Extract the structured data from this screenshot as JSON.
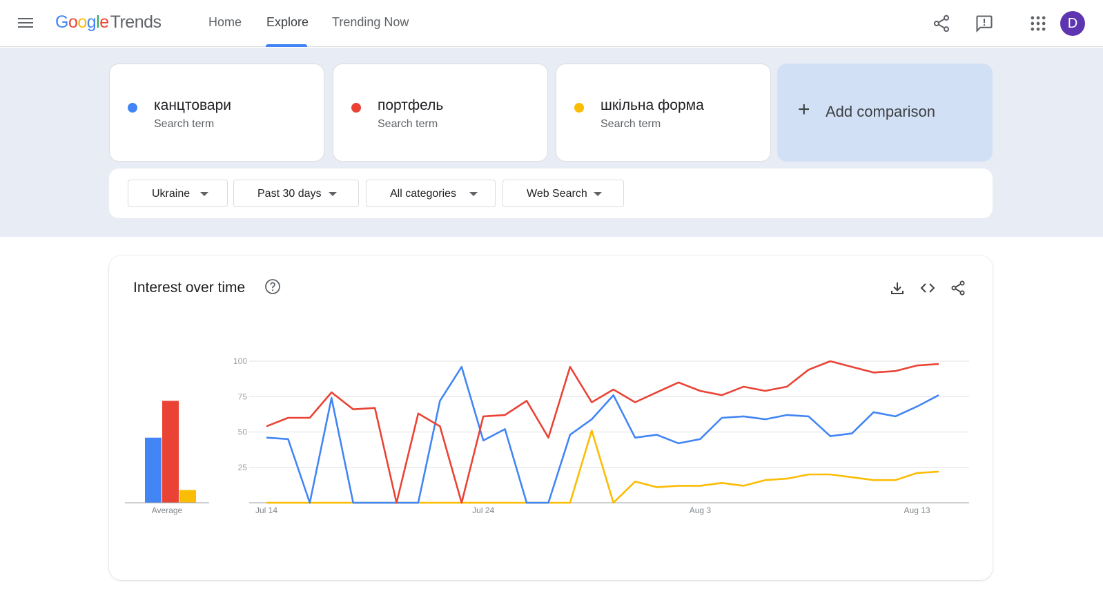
{
  "header": {
    "logo_parts": [
      "G",
      "o",
      "o",
      "g",
      "l",
      "e"
    ],
    "logo_suffix": "Trends",
    "nav": [
      {
        "label": "Home"
      },
      {
        "label": "Explore"
      },
      {
        "label": "Trending Now"
      }
    ],
    "active_nav": "Explore",
    "avatar_letter": "D",
    "icons": [
      "menu-icon",
      "share-icon",
      "feedback-icon",
      "apps-grid-icon"
    ]
  },
  "terms": [
    {
      "name": "канцтовари",
      "type": "Search term",
      "color": "#4285f4"
    },
    {
      "name": "портфель",
      "type": "Search term",
      "color": "#ea4335"
    },
    {
      "name": "шкільна форма",
      "type": "Search term",
      "color": "#fbbc04"
    }
  ],
  "add_comparison": {
    "label": "Add comparison",
    "icon": "plus-icon"
  },
  "filters": [
    {
      "label": "Ukraine"
    },
    {
      "label": "Past 30 days"
    },
    {
      "label": "All categories"
    },
    {
      "label": "Web Search"
    }
  ],
  "interest_over_time": {
    "title": "Interest over time",
    "icons": [
      "help-icon",
      "download-icon",
      "embed-code-icon",
      "share-icon"
    ]
  },
  "chart_data": {
    "type": "line",
    "title": "Interest over time",
    "ylim": [
      0,
      100
    ],
    "yticks": [
      25,
      50,
      75,
      100
    ],
    "x_tick_labels": [
      "Jul 14",
      "Jul 24",
      "Aug 3",
      "Aug 13"
    ],
    "x_start": "Jul 14",
    "x_end": "Aug 14",
    "grid": true,
    "series": [
      {
        "name": "канцтовари",
        "color": "#4285f4",
        "values": [
          46,
          45,
          0,
          74,
          0,
          0,
          0,
          0,
          72,
          96,
          44,
          52,
          0,
          0,
          48,
          59,
          76,
          46,
          48,
          42,
          45,
          60,
          61,
          59,
          62,
          61,
          47,
          49,
          64,
          61,
          68,
          76
        ]
      },
      {
        "name": "портфель",
        "color": "#ea4335",
        "values": [
          54,
          60,
          60,
          78,
          66,
          67,
          0,
          63,
          54,
          0,
          61,
          62,
          72,
          46,
          96,
          71,
          80,
          71,
          78,
          85,
          79,
          76,
          82,
          79,
          82,
          94,
          100,
          96,
          92,
          93,
          97,
          98
        ]
      },
      {
        "name": "шкільна форма",
        "color": "#fbbc04",
        "values": [
          0,
          0,
          0,
          0,
          0,
          0,
          0,
          0,
          0,
          0,
          0,
          0,
          0,
          0,
          0,
          51,
          0,
          15,
          11,
          12,
          12,
          14,
          12,
          16,
          17,
          20,
          20,
          18,
          16,
          16,
          21,
          22
        ]
      }
    ],
    "averages": {
      "label": "Average",
      "values": [
        46,
        72,
        9
      ]
    }
  }
}
